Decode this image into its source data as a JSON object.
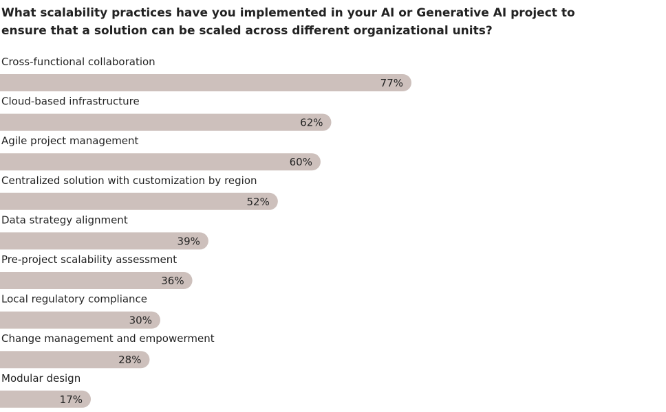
{
  "chart_data": {
    "type": "bar",
    "orientation": "horizontal",
    "title": "What scalability practices have you implemented in your AI or Generative AI project to ensure that a solution can be scaled across different organizational units?",
    "categories": [
      "Cross-functional collaboration",
      "Cloud-based infrastructure",
      "Agile project management",
      "Centralized solution with customization by region",
      "Data strategy alignment",
      "Pre-project scalability assessment",
      "Local regulatory compliance",
      "Change management and empowerment",
      "Modular design"
    ],
    "values": [
      77,
      62,
      60,
      52,
      39,
      36,
      30,
      28,
      17
    ],
    "value_labels": [
      "77%",
      "62%",
      "60%",
      "52%",
      "39%",
      "36%",
      "30%",
      "28%",
      "17%"
    ],
    "color": "#cdc0bc"
  }
}
